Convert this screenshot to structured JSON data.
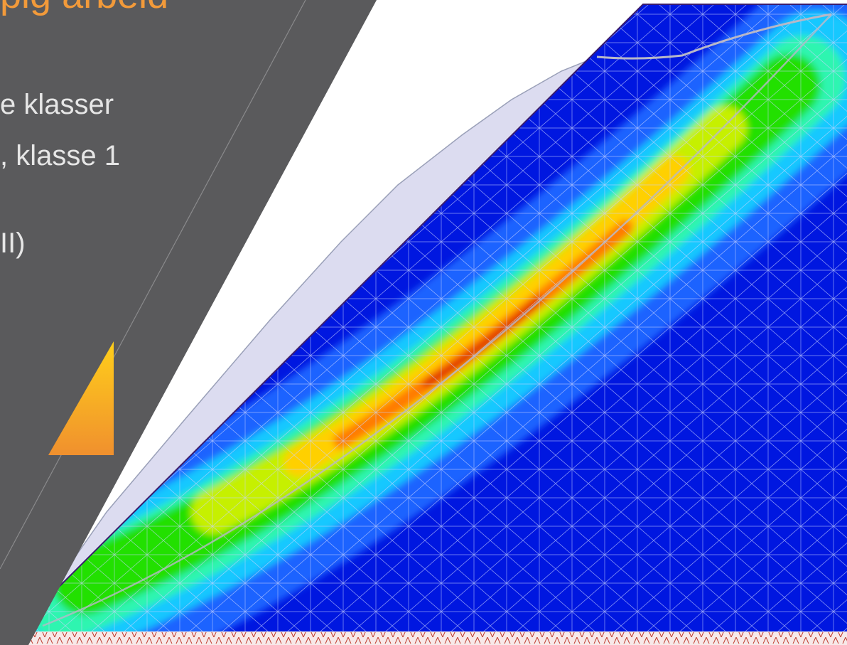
{
  "slide": {
    "title_fragment": "pig arbeid",
    "bullets": [
      "e klasser",
      ", klasse 1",
      "II)"
    ]
  },
  "colors": {
    "panel": "#5a5a5c",
    "title": "#f29a3a",
    "text": "#e6e6e6",
    "accent_gradient": [
      "#ffcf1a",
      "#f0902e"
    ],
    "contour": [
      "#0017e0",
      "#1b64ff",
      "#19c8ff",
      "#2ef5b0",
      "#22e000",
      "#c6f000",
      "#ffd000",
      "#ff7a00",
      "#d60000"
    ]
  }
}
